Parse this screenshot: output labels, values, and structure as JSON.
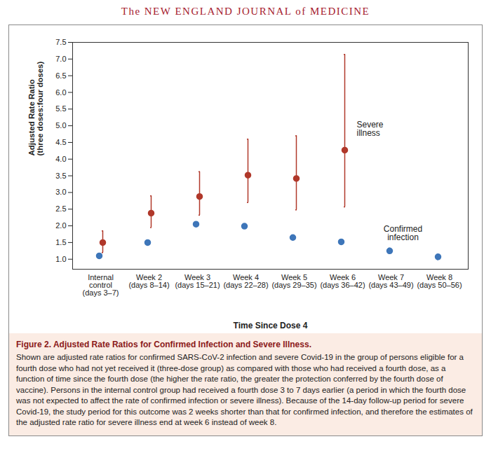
{
  "chart_data": {
    "type": "scatter",
    "header": "The NEW ENGLAND JOURNAL of MEDICINE",
    "title": "Figure 2. Adjusted Rate Ratios for Confirmed Infection and Severe Illness.",
    "caption": "Shown are adjusted rate ratios for confirmed SARS-CoV-2 infection and severe Covid-19 in the group of persons eligible for a fourth dose who had not yet received it (three-dose group) as compared with those who had received a fourth dose, as a function of time since the fourth dose (the higher the rate ratio, the greater the protection conferred by the fourth dose of vaccine). Persons in the internal control group had received a fourth dose 3 to 7 days earlier (a period in which the fourth dose was not expected to affect the rate of confirmed infection or severe illness). Because of the 14-day follow-up period for severe Covid-19, the study period for this outcome was 2 weeks shorter than that for confirmed infection, and therefore the estimates of the adjusted rate ratio for severe illness end at week 6 instead of week 8.",
    "x_label": "Time Since Dose 4",
    "y_label": "Adjusted Rate Ratio\n(three doses:four doses)",
    "categories": [
      "Internal\ncontrol\n(days 3–7)",
      "Week 2\n(days 8–14)",
      "Week 3\n(days 15–21)",
      "Week 4\n(days 22–28)",
      "Week 5\n(days 29–35)",
      "Week 6\n(days 36–42)",
      "Week 7\n(days 43–49)",
      "Week 8\n(days 50–56)"
    ],
    "ylim": [
      0.7,
      7.5
    ],
    "yticks": [
      {
        "value": 1,
        "label": "1.0"
      },
      {
        "value": 1.5,
        "label": "1.5"
      },
      {
        "value": 2,
        "label": "2.0"
      },
      {
        "value": 2.5,
        "label": "2.5"
      },
      {
        "value": 3,
        "label": "3.0"
      },
      {
        "value": 3.5,
        "label": "3.5"
      },
      {
        "value": 4,
        "label": "4.0"
      },
      {
        "value": 4.5,
        "label": "4.5"
      },
      {
        "value": 5,
        "label": "5.0"
      },
      {
        "value": 5.5,
        "label": "5.5"
      },
      {
        "value": 6,
        "label": "6.0"
      },
      {
        "value": 6.5,
        "label": "6.5"
      },
      {
        "value": 7,
        "label": "7.0"
      },
      {
        "value": 7.5,
        "label": "7.5"
      }
    ],
    "grid": false,
    "series": [
      {
        "name": "Severe illness",
        "color": "#b0382a",
        "marker": "circle",
        "values": [
          1.5,
          2.38,
          2.88,
          3.52,
          3.42,
          4.27,
          null,
          null
        ],
        "lower": [
          1.2,
          1.95,
          2.32,
          2.7,
          2.48,
          2.57,
          null,
          null
        ],
        "upper": [
          1.85,
          2.9,
          3.62,
          4.6,
          4.7,
          7.14,
          null,
          null
        ]
      },
      {
        "name": "Confirmed infection",
        "color": "#3e76b9",
        "marker": "circle",
        "values": [
          1.1,
          1.5,
          2.05,
          1.99,
          1.65,
          1.52,
          1.25,
          1.07
        ],
        "lower": [
          1.08,
          1.48,
          2.0,
          1.94,
          1.6,
          1.46,
          1.17,
          0.99
        ],
        "upper": [
          1.13,
          1.52,
          2.1,
          2.04,
          1.71,
          1.58,
          1.33,
          1.15
        ]
      }
    ]
  }
}
